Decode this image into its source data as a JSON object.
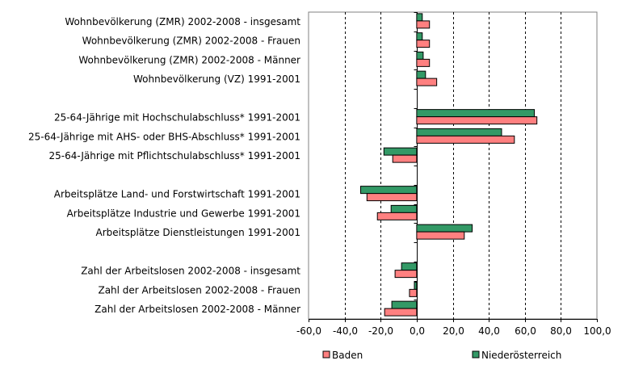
{
  "chart_data": {
    "type": "bar",
    "orientation": "horizontal",
    "categories": [
      "Wohnbevölkerung (ZMR) 2002-2008 - insgesamt",
      "Wohnbevölkerung (ZMR) 2002-2008 - Frauen",
      "Wohnbevölkerung (ZMR) 2002-2008 - Männer",
      "Wohnbevölkerung (VZ) 1991-2001",
      "",
      "25-64-Jährige mit Hochschulabschluss* 1991-2001",
      "25-64-Jährige mit AHS- oder BHS-Abschluss* 1991-2001",
      "25-64-Jährige mit Pflichtschulabschluss* 1991-2001",
      "",
      "Arbeitsplätze Land- und Forstwirtschaft 1991-2001",
      "Arbeitsplätze Industrie und Gewerbe 1991-2001",
      "Arbeitsplätze Dienstleistungen 1991-2001",
      "",
      "Zahl der Arbeitslosen 2002-2008 - insgesamt",
      "Zahl der Arbeitslosen 2002-2008 - Frauen",
      "Zahl der Arbeitslosen 2002-2008 - Männer"
    ],
    "series": [
      {
        "name": "Baden",
        "color": "#ff8080",
        "values": [
          7.1,
          7.1,
          7.1,
          11.1,
          null,
          66.7,
          54.2,
          -13.3,
          null,
          -27.6,
          -21.8,
          26.4,
          null,
          -12.0,
          -4.0,
          -17.8
        ]
      },
      {
        "name": "Niederösterreich",
        "color": "#339966",
        "values": [
          3.1,
          3.1,
          3.6,
          4.9,
          null,
          65.3,
          47.1,
          -18.2,
          null,
          -31.1,
          -14.2,
          30.8,
          null,
          -8.4,
          -1.3,
          -13.8
        ]
      }
    ],
    "xlim": [
      -60,
      100
    ],
    "xticks": [
      "-60,0",
      "-40,0",
      "-20,0",
      "0,0",
      "20,0",
      "40,0",
      "60,0",
      "80,0",
      "100,0"
    ],
    "grid": "vertical dashed",
    "legend": "bottom",
    "title": "",
    "xlabel": "",
    "ylabel": ""
  }
}
